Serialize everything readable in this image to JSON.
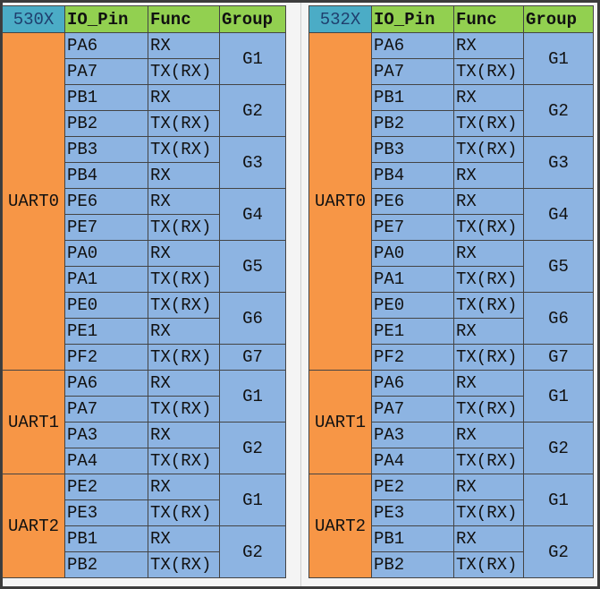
{
  "tables": [
    {
      "headers": [
        "530X",
        "IO_Pin",
        "Func",
        "Group"
      ],
      "uarts": [
        {
          "name": "UART0",
          "groups": [
            {
              "name": "G1",
              "pins": [
                {
                  "pin": "PA6",
                  "func": "RX"
                },
                {
                  "pin": "PA7",
                  "func": "TX(RX)"
                }
              ]
            },
            {
              "name": "G2",
              "pins": [
                {
                  "pin": "PB1",
                  "func": "RX"
                },
                {
                  "pin": "PB2",
                  "func": "TX(RX)"
                }
              ]
            },
            {
              "name": "G3",
              "pins": [
                {
                  "pin": "PB3",
                  "func": "TX(RX)"
                },
                {
                  "pin": "PB4",
                  "func": "RX"
                }
              ]
            },
            {
              "name": "G4",
              "pins": [
                {
                  "pin": "PE6",
                  "func": "RX"
                },
                {
                  "pin": "PE7",
                  "func": "TX(RX)"
                }
              ]
            },
            {
              "name": "G5",
              "pins": [
                {
                  "pin": "PA0",
                  "func": "RX"
                },
                {
                  "pin": "PA1",
                  "func": "TX(RX)"
                }
              ]
            },
            {
              "name": "G6",
              "pins": [
                {
                  "pin": "PE0",
                  "func": "TX(RX)"
                },
                {
                  "pin": "PE1",
                  "func": "RX"
                }
              ]
            },
            {
              "name": "G7",
              "pins": [
                {
                  "pin": "PF2",
                  "func": "TX(RX)"
                }
              ]
            }
          ]
        },
        {
          "name": "UART1",
          "groups": [
            {
              "name": "G1",
              "pins": [
                {
                  "pin": "PA6",
                  "func": "RX"
                },
                {
                  "pin": "PA7",
                  "func": "TX(RX)"
                }
              ]
            },
            {
              "name": "G2",
              "pins": [
                {
                  "pin": "PA3",
                  "func": "RX"
                },
                {
                  "pin": "PA4",
                  "func": "TX(RX)"
                }
              ]
            }
          ]
        },
        {
          "name": "UART2",
          "groups": [
            {
              "name": "G1",
              "pins": [
                {
                  "pin": "PE2",
                  "func": "RX"
                },
                {
                  "pin": "PE3",
                  "func": "TX(RX)"
                }
              ]
            },
            {
              "name": "G2",
              "pins": [
                {
                  "pin": "PB1",
                  "func": "RX"
                },
                {
                  "pin": "PB2",
                  "func": "TX(RX)"
                }
              ]
            }
          ]
        }
      ]
    },
    {
      "headers": [
        "532X",
        "IO_Pin",
        "Func",
        "Group"
      ],
      "uarts": [
        {
          "name": "UART0",
          "groups": [
            {
              "name": "G1",
              "pins": [
                {
                  "pin": "PA6",
                  "func": "RX"
                },
                {
                  "pin": "PA7",
                  "func": "TX(RX)"
                }
              ]
            },
            {
              "name": "G2",
              "pins": [
                {
                  "pin": "PB1",
                  "func": "RX"
                },
                {
                  "pin": "PB2",
                  "func": "TX(RX)"
                }
              ]
            },
            {
              "name": "G3",
              "pins": [
                {
                  "pin": "PB3",
                  "func": "TX(RX)"
                },
                {
                  "pin": "PB4",
                  "func": "RX"
                }
              ]
            },
            {
              "name": "G4",
              "pins": [
                {
                  "pin": "PE6",
                  "func": "RX"
                },
                {
                  "pin": "PE7",
                  "func": "TX(RX)"
                }
              ]
            },
            {
              "name": "G5",
              "pins": [
                {
                  "pin": "PA0",
                  "func": "RX"
                },
                {
                  "pin": "PA1",
                  "func": "TX(RX)"
                }
              ]
            },
            {
              "name": "G6",
              "pins": [
                {
                  "pin": "PE0",
                  "func": "TX(RX)"
                },
                {
                  "pin": "PE1",
                  "func": "RX"
                }
              ]
            },
            {
              "name": "G7",
              "pins": [
                {
                  "pin": "PF2",
                  "func": "TX(RX)"
                }
              ]
            }
          ]
        },
        {
          "name": "UART1",
          "groups": [
            {
              "name": "G1",
              "pins": [
                {
                  "pin": "PA6",
                  "func": "RX"
                },
                {
                  "pin": "PA7",
                  "func": "TX(RX)"
                }
              ]
            },
            {
              "name": "G2",
              "pins": [
                {
                  "pin": "PA3",
                  "func": "RX"
                },
                {
                  "pin": "PA4",
                  "func": "TX(RX)"
                }
              ]
            }
          ]
        },
        {
          "name": "UART2",
          "groups": [
            {
              "name": "G1",
              "pins": [
                {
                  "pin": "PE2",
                  "func": "RX"
                },
                {
                  "pin": "PE3",
                  "func": "TX(RX)"
                }
              ]
            },
            {
              "name": "G2",
              "pins": [
                {
                  "pin": "PB1",
                  "func": "RX"
                },
                {
                  "pin": "PB2",
                  "func": "TX(RX)"
                }
              ]
            }
          ]
        }
      ]
    }
  ]
}
